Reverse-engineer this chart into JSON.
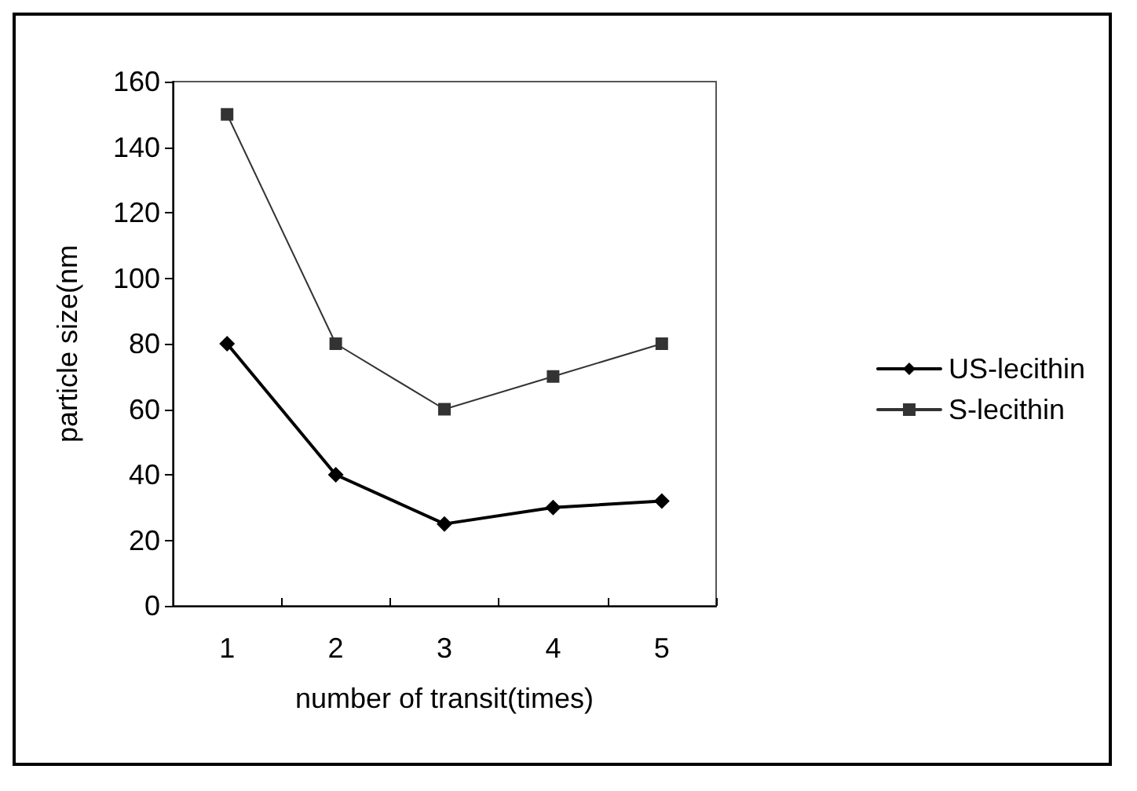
{
  "chart_data": {
    "type": "line",
    "xlabel": "number of transit(times)",
    "ylabel": "particle size(nm",
    "categories": [
      "1",
      "2",
      "3",
      "4",
      "5"
    ],
    "series": [
      {
        "name": "US-lecithin",
        "color": "#000000",
        "marker": "diamond",
        "line_style": "solid",
        "values": [
          80,
          40,
          25,
          30,
          32
        ]
      },
      {
        "name": "S-lecithin",
        "color": "#333333",
        "marker": "square",
        "line_style": "solid",
        "values": [
          150,
          80,
          60,
          70,
          80
        ]
      }
    ],
    "ylim": [
      0,
      160
    ],
    "yticks": [
      0,
      20,
      40,
      60,
      80,
      100,
      120,
      140,
      160
    ],
    "grid": false,
    "legend": "right"
  }
}
